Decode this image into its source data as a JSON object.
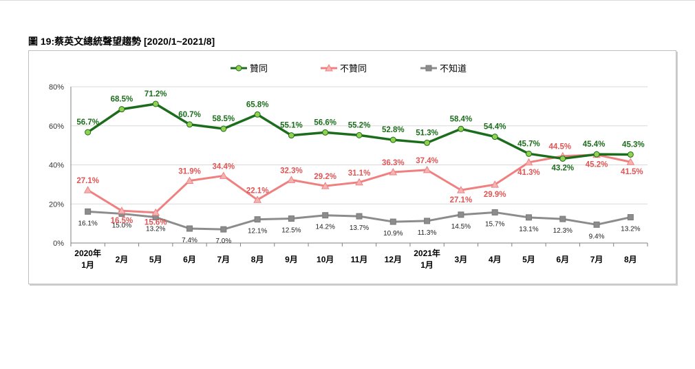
{
  "figure": {
    "title": "圖 19:蔡英文總統聲望趨勢 [2020/1~2021/8]"
  },
  "colors": {
    "approve": "#1b6d1b",
    "approve_marker": "#92d050",
    "disapprove": "#f08080",
    "disapprove_label": "#e05555",
    "unknown": "#8c8c8c",
    "gridline": "#d9d9d9"
  },
  "chart_data": {
    "type": "line",
    "title": "",
    "xlabel": "",
    "ylabel": "",
    "ylim": [
      0,
      80
    ],
    "yticks": [
      "0%",
      "20%",
      "40%",
      "60%",
      "80%"
    ],
    "grid": true,
    "legend_position": "top-center",
    "year_labels": [
      {
        "index": 0,
        "text": "2020年"
      },
      {
        "index": 10,
        "text": "2021年"
      }
    ],
    "categories": [
      "1月",
      "2月",
      "5月",
      "6月",
      "7月",
      "8月",
      "9月",
      "10月",
      "11月",
      "12月",
      "1月",
      "3月",
      "4月",
      "5月",
      "6月",
      "7月",
      "8月"
    ],
    "series": [
      {
        "name": "贊同",
        "key": "approve",
        "values": [
          56.7,
          68.5,
          71.2,
          60.7,
          58.5,
          65.8,
          55.1,
          56.6,
          55.2,
          52.8,
          51.3,
          58.4,
          54.4,
          45.7,
          43.2,
          45.4,
          45.3
        ],
        "labels": [
          "56.7%",
          "68.5%",
          "71.2%",
          "60.7%",
          "58.5%",
          "65.8%",
          "55.1%",
          "56.6%",
          "55.2%",
          "52.8%",
          "51.3%",
          "58.4%",
          "54.4%",
          "45.7%",
          "43.2%",
          "45.4%",
          "45.3%"
        ]
      },
      {
        "name": "不贊同",
        "key": "disapprove",
        "values": [
          27.1,
          16.5,
          15.6,
          31.9,
          34.4,
          22.1,
          32.3,
          29.2,
          31.1,
          36.3,
          37.4,
          27.1,
          29.9,
          41.3,
          44.5,
          45.2,
          41.5
        ],
        "labels": [
          "27.1%",
          "16.5%",
          "15.6%",
          "31.9%",
          "34.4%",
          "22.1%",
          "32.3%",
          "29.2%",
          "31.1%",
          "36.3%",
          "37.4%",
          "27.1%",
          "29.9%",
          "41.3%",
          "44.5%",
          "45.2%",
          "41.5%"
        ]
      },
      {
        "name": "不知道",
        "key": "unknown",
        "values": [
          16.1,
          15.0,
          13.2,
          7.4,
          7.0,
          12.1,
          12.5,
          14.2,
          13.7,
          10.9,
          11.3,
          14.5,
          15.7,
          13.1,
          12.3,
          9.4,
          13.2
        ],
        "labels": [
          "16.1%",
          "15.0%",
          "13.2%",
          "7.4%",
          "7.0%",
          "12.1%",
          "12.5%",
          "14.2%",
          "13.7%",
          "10.9%",
          "11.3%",
          "14.5%",
          "15.7%",
          "13.1%",
          "12.3%",
          "9.4%",
          "13.2%"
        ]
      }
    ]
  }
}
